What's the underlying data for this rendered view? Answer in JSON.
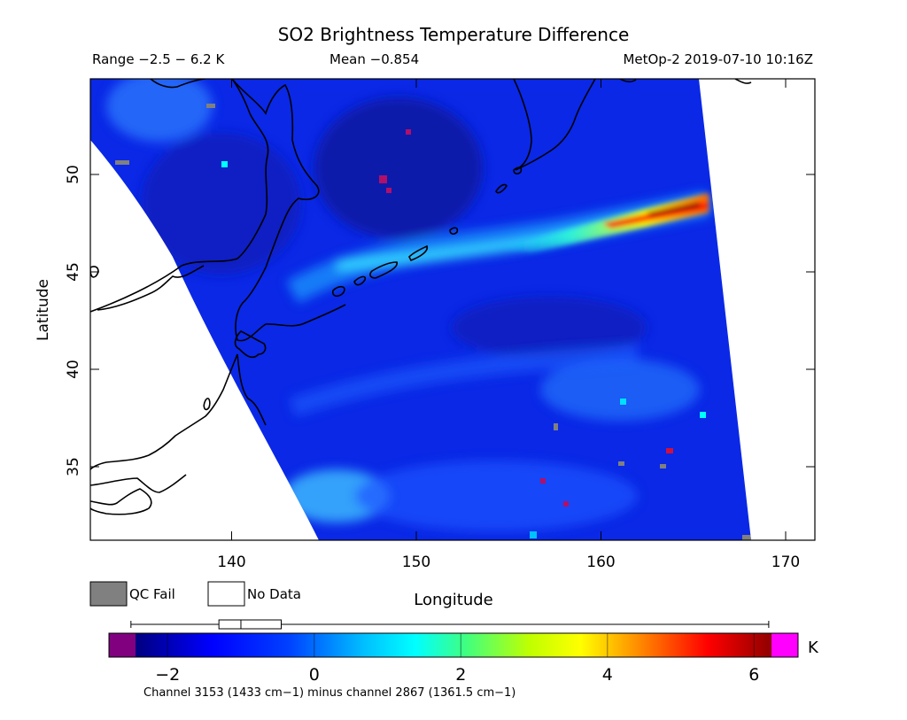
{
  "title": "SO2 Brightness Temperature Difference",
  "header": {
    "range": "Range −2.5 − 6.2 K",
    "mean": "Mean −0.854",
    "satellite_time": "MetOp-2 2019-07-10 10:16Z"
  },
  "axes": {
    "xlabel": "Longitude",
    "ylabel": "Latitude",
    "x_ticks": [
      "140",
      "150",
      "160",
      "170"
    ],
    "y_ticks": [
      "35",
      "40",
      "45",
      "50"
    ],
    "x_range": [
      132,
      172
    ],
    "y_range": [
      31,
      55
    ]
  },
  "legend": {
    "qc_fail": "QC Fail",
    "no_data": "No Data"
  },
  "colorbar": {
    "range": [
      -2.8,
      6.6
    ],
    "ticks": [
      "−2",
      "0",
      "2",
      "4",
      "6"
    ],
    "tick_values": [
      -2,
      0,
      2,
      4,
      6
    ],
    "unit": "K",
    "box_plot": {
      "min": -2.5,
      "q1": -1.3,
      "median": -1.0,
      "q3": -0.45,
      "max": 6.2
    },
    "caption": "Channel 3153 (1433 cm−1) minus channel 2867 (1361.5 cm−1)"
  },
  "colors": {
    "qc_fail": "#808080",
    "no_data": "#ffffff",
    "under": "#800080",
    "over": "#ff00ff"
  }
}
